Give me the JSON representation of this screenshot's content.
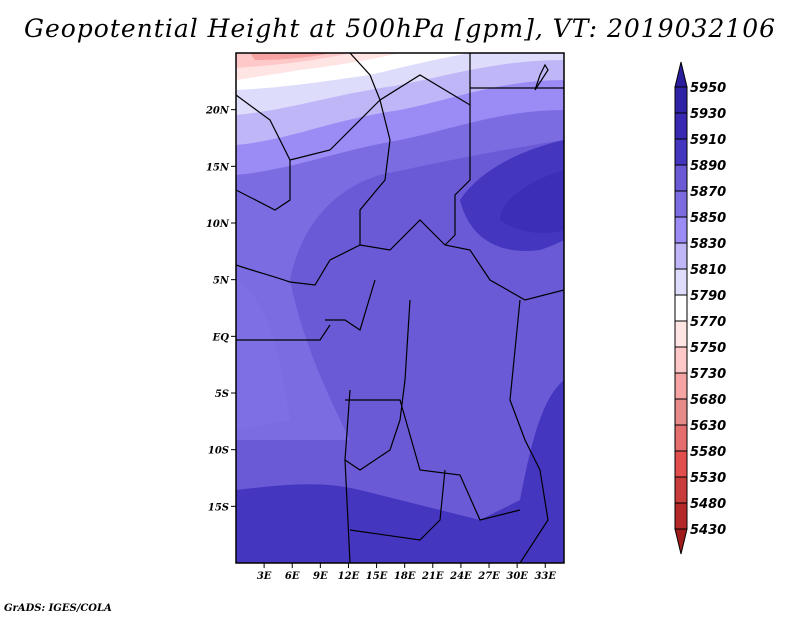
{
  "title": "Geopotential Height at 500hPa [gpm], VT: 2019032106",
  "credit": "GrADS: IGES/COLA",
  "chart_data": {
    "type": "heatmap",
    "title": "Geopotential Height at 500hPa [gpm], VT: 2019032106",
    "variable": "Geopotential Height",
    "units": "gpm",
    "level": "500hPa",
    "valid_time": "2019032106",
    "lon_range": [
      0,
      35
    ],
    "lat_range": [
      -20,
      25
    ],
    "x_ticks": [
      "3E",
      "6E",
      "9E",
      "12E",
      "15E",
      "18E",
      "21E",
      "24E",
      "27E",
      "30E",
      "33E"
    ],
    "x_tick_values": [
      3,
      6,
      9,
      12,
      15,
      18,
      21,
      24,
      27,
      30,
      33
    ],
    "y_ticks": [
      "20N",
      "15N",
      "10N",
      "5N",
      "EQ",
      "5S",
      "10S",
      "15S"
    ],
    "y_tick_values": [
      20,
      15,
      10,
      5,
      0,
      -5,
      -10,
      -15
    ],
    "colorbar": {
      "levels": [
        5950,
        5930,
        5910,
        5890,
        5870,
        5850,
        5830,
        5810,
        5790,
        5770,
        5750,
        5730,
        5680,
        5630,
        5580,
        5530,
        5480,
        5430
      ],
      "colors": [
        "#2a1e9e",
        "#2f22a6",
        "#3828b2",
        "#4536c0",
        "#6a5ad5",
        "#7b6ce2",
        "#9b8cf5",
        "#bfb6f8",
        "#dedcfb",
        "#ffffff",
        "#ffe4e4",
        "#ffc8c8",
        "#f5a3a3",
        "#e68a8a",
        "#e46d6d",
        "#e24e4e",
        "#c83c3c",
        "#b42828",
        "#a01c1c"
      ],
      "extend": "both"
    }
  }
}
